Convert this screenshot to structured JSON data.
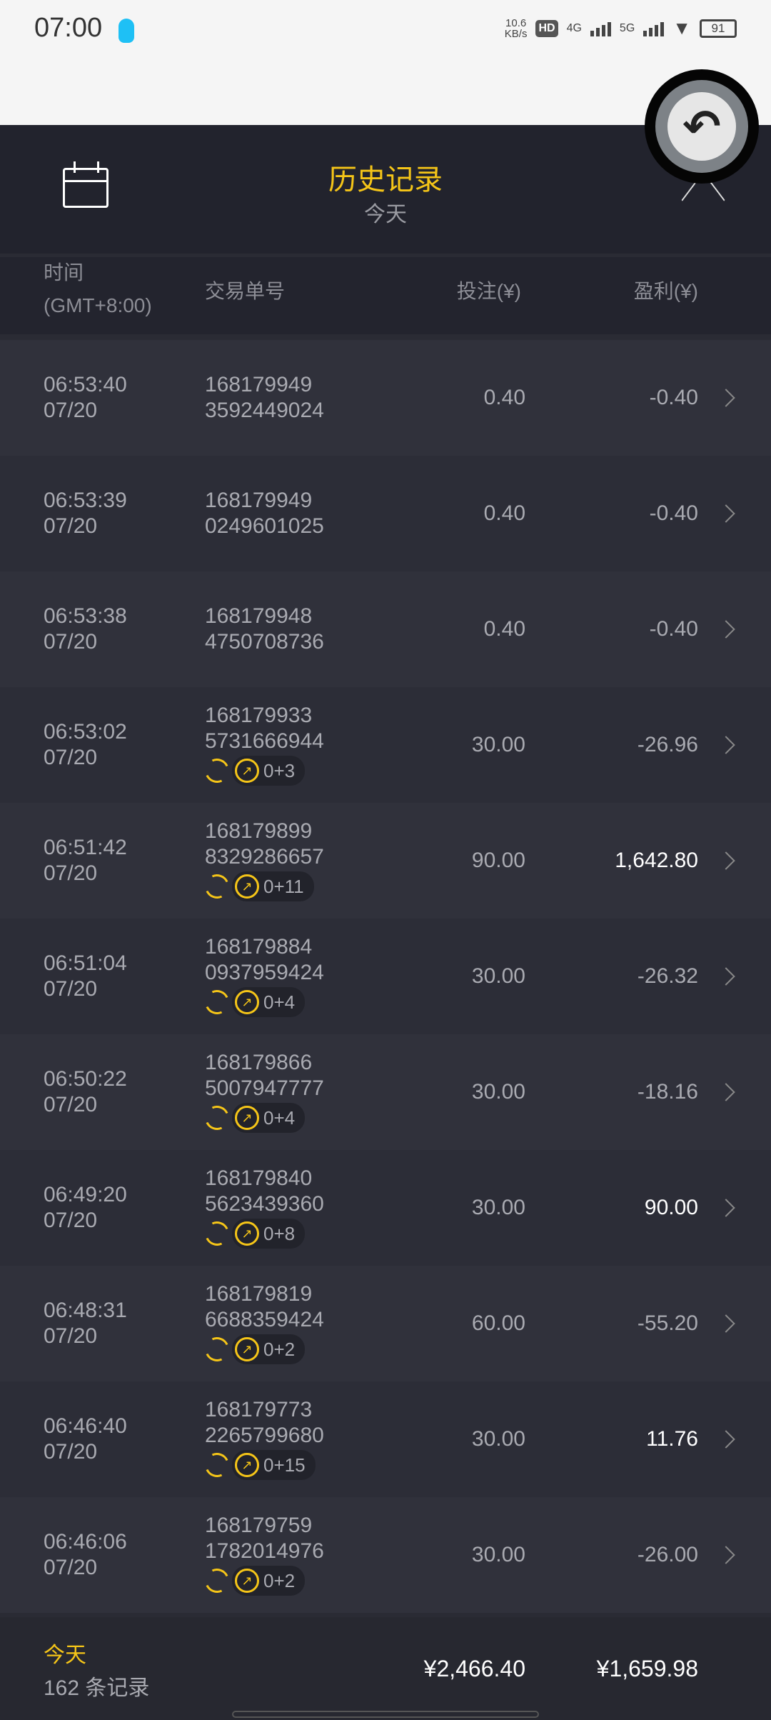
{
  "status_bar": {
    "time": "07:00",
    "net_speed": "10.6",
    "net_unit": "KB/s",
    "hd": "HD",
    "sim1": "4G",
    "sim2": "5G",
    "battery": "91"
  },
  "header": {
    "title": "历史记录",
    "subtitle": "今天",
    "title_color": "#f5c518"
  },
  "columns": {
    "time": "时间",
    "timezone": "(GMT+8:00)",
    "order": "交易单号",
    "bet": "投注(¥)",
    "profit": "盈利(¥)"
  },
  "rows": [
    {
      "time": "06:53:40",
      "date": "07/20",
      "order1": "168179949",
      "order2": "3592449024",
      "bet": "0.40",
      "profit": "-0.40",
      "positive": false,
      "badge": ""
    },
    {
      "time": "06:53:39",
      "date": "07/20",
      "order1": "168179949",
      "order2": "0249601025",
      "bet": "0.40",
      "profit": "-0.40",
      "positive": false,
      "badge": ""
    },
    {
      "time": "06:53:38",
      "date": "07/20",
      "order1": "168179948",
      "order2": "4750708736",
      "bet": "0.40",
      "profit": "-0.40",
      "positive": false,
      "badge": ""
    },
    {
      "time": "06:53:02",
      "date": "07/20",
      "order1": "168179933",
      "order2": "5731666944",
      "bet": "30.00",
      "profit": "-26.96",
      "positive": false,
      "badge": "0+3"
    },
    {
      "time": "06:51:42",
      "date": "07/20",
      "order1": "168179899",
      "order2": "8329286657",
      "bet": "90.00",
      "profit": "1,642.80",
      "positive": true,
      "badge": "0+11"
    },
    {
      "time": "06:51:04",
      "date": "07/20",
      "order1": "168179884",
      "order2": "0937959424",
      "bet": "30.00",
      "profit": "-26.32",
      "positive": false,
      "badge": "0+4"
    },
    {
      "time": "06:50:22",
      "date": "07/20",
      "order1": "168179866",
      "order2": "5007947777",
      "bet": "30.00",
      "profit": "-18.16",
      "positive": false,
      "badge": "0+4"
    },
    {
      "time": "06:49:20",
      "date": "07/20",
      "order1": "168179840",
      "order2": "5623439360",
      "bet": "30.00",
      "profit": "90.00",
      "positive": true,
      "badge": "0+8"
    },
    {
      "time": "06:48:31",
      "date": "07/20",
      "order1": "168179819",
      "order2": "6688359424",
      "bet": "60.00",
      "profit": "-55.20",
      "positive": false,
      "badge": "0+2"
    },
    {
      "time": "06:46:40",
      "date": "07/20",
      "order1": "168179773",
      "order2": "2265799680",
      "bet": "30.00",
      "profit": "11.76",
      "positive": true,
      "badge": "0+15"
    },
    {
      "time": "06:46:06",
      "date": "07/20",
      "order1": "168179759",
      "order2": "1782014976",
      "bet": "30.00",
      "profit": "-26.00",
      "positive": false,
      "badge": "0+2"
    }
  ],
  "footer": {
    "period": "今天",
    "count": "162 条记录",
    "total_bet": "¥2,466.40",
    "total_profit": "¥1,659.98"
  },
  "icons": {
    "calendar": "calendar-icon",
    "collapse": "chevron-up-icon",
    "back": "undo-icon",
    "row": "chevron-right-icon"
  }
}
